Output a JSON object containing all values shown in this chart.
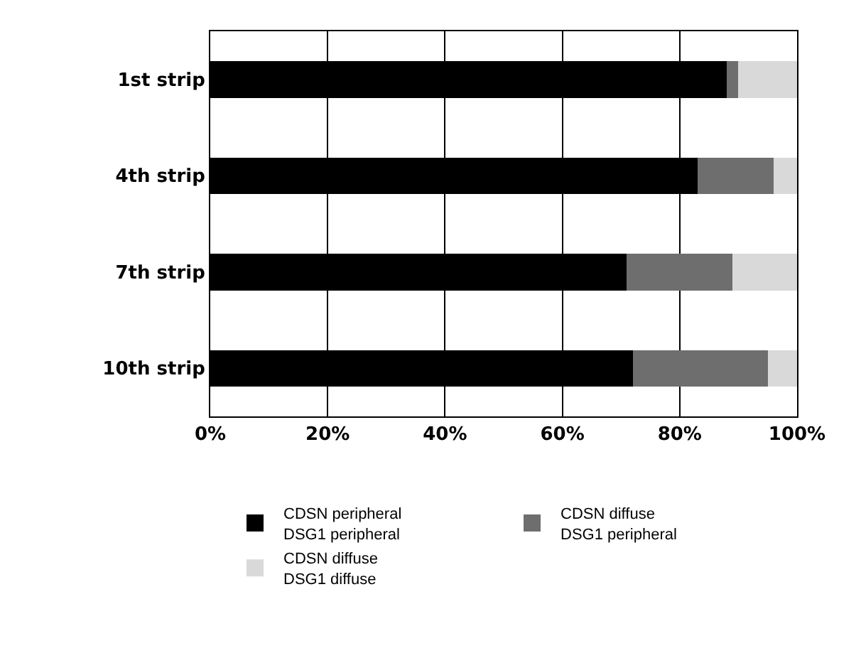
{
  "chart_data": {
    "type": "bar",
    "orientation": "horizontal",
    "stacked": true,
    "categories": [
      "1st strip",
      "4th strip",
      "7th strip",
      "10th strip"
    ],
    "series": [
      {
        "name": "CDSN peripheral\nDSG1 peripheral",
        "color": "#000000",
        "values": [
          88,
          83,
          71,
          72
        ]
      },
      {
        "name": "CDSN diffuse\nDSG1 peripheral",
        "color": "#6e6e6e",
        "values": [
          2,
          13,
          18,
          23
        ]
      },
      {
        "name": "CDSN diffuse\nDSG1 diffuse",
        "color": "#d9d9d9",
        "values": [
          10,
          4,
          11,
          5
        ]
      }
    ],
    "xlim": [
      0,
      100
    ],
    "xticks": [
      {
        "value": 0,
        "label": "0%"
      },
      {
        "value": 20,
        "label": "20%"
      },
      {
        "value": 40,
        "label": "40%"
      },
      {
        "value": 60,
        "label": "60%"
      },
      {
        "value": 80,
        "label": "80%"
      },
      {
        "value": 100,
        "label": "100%"
      }
    ],
    "grid": "x",
    "legend": "bottom"
  }
}
